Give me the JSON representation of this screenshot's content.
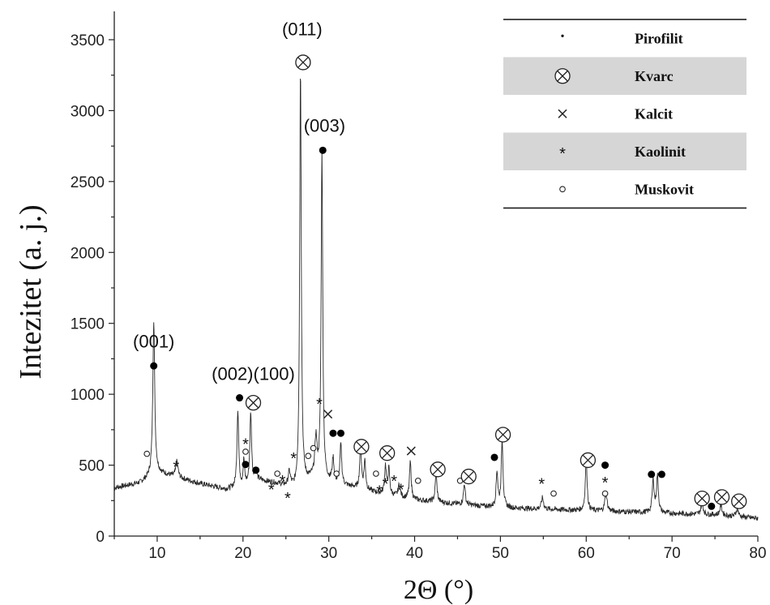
{
  "chart_data": {
    "type": "line",
    "xlabel": "2Θ (°)",
    "ylabel": "Intezitet (a. j.)",
    "xlim": [
      5,
      80
    ],
    "ylim": [
      0,
      3700
    ],
    "x_ticks": [
      10,
      20,
      30,
      40,
      50,
      60,
      70,
      80
    ],
    "y_ticks": [
      0,
      500,
      1000,
      1500,
      2000,
      2500,
      3000,
      3500
    ],
    "grid": false,
    "legend_position": "top-right",
    "legend": [
      {
        "symbol": "pirofilit",
        "label": "Pirofilit",
        "shaded": false
      },
      {
        "symbol": "kvarc",
        "label": "Kvarc",
        "shaded": true
      },
      {
        "symbol": "kalcit",
        "label": "Kalcit",
        "shaded": false
      },
      {
        "symbol": "kaolinit",
        "label": "Kaolinit",
        "shaded": true
      },
      {
        "symbol": "muskovit",
        "label": "Muskovit",
        "shaded": false
      }
    ],
    "baseline": [
      [
        5,
        340
      ],
      [
        8,
        375
      ],
      [
        10,
        450
      ],
      [
        12,
        420
      ],
      [
        15,
        370
      ],
      [
        18,
        330
      ],
      [
        20,
        345
      ],
      [
        22,
        390
      ],
      [
        24,
        370
      ],
      [
        26,
        330
      ],
      [
        28,
        400
      ],
      [
        30,
        380
      ],
      [
        33,
        340
      ],
      [
        36,
        300
      ],
      [
        40,
        255
      ],
      [
        45,
        225
      ],
      [
        50,
        200
      ],
      [
        55,
        190
      ],
      [
        60,
        180
      ],
      [
        65,
        170
      ],
      [
        70,
        160
      ],
      [
        75,
        150
      ],
      [
        80,
        125
      ]
    ],
    "peaks": [
      {
        "x": 9.6,
        "y": 1090,
        "w": 0.13
      },
      {
        "x": 12.3,
        "y": 110,
        "w": 0.15
      },
      {
        "x": 19.4,
        "y": 550,
        "w": 0.12
      },
      {
        "x": 20.1,
        "y": 180,
        "w": 0.1
      },
      {
        "x": 20.9,
        "y": 500,
        "w": 0.12
      },
      {
        "x": 21.5,
        "y": 80,
        "w": 0.15
      },
      {
        "x": 25.4,
        "y": 100,
        "w": 0.15
      },
      {
        "x": 26.7,
        "y": 2950,
        "w": 0.11
      },
      {
        "x": 28.5,
        "y": 280,
        "w": 0.15
      },
      {
        "x": 29.2,
        "y": 2330,
        "w": 0.11
      },
      {
        "x": 30.5,
        "y": 170,
        "w": 0.12
      },
      {
        "x": 31.4,
        "y": 280,
        "w": 0.12
      },
      {
        "x": 33.7,
        "y": 300,
        "w": 0.12
      },
      {
        "x": 34.2,
        "y": 200,
        "w": 0.12
      },
      {
        "x": 36.6,
        "y": 200,
        "w": 0.12
      },
      {
        "x": 37.0,
        "y": 180,
        "w": 0.12
      },
      {
        "x": 38.2,
        "y": 80,
        "w": 0.15
      },
      {
        "x": 39.5,
        "y": 260,
        "w": 0.12
      },
      {
        "x": 42.5,
        "y": 200,
        "w": 0.12
      },
      {
        "x": 45.8,
        "y": 150,
        "w": 0.12
      },
      {
        "x": 49.6,
        "y": 250,
        "w": 0.12
      },
      {
        "x": 50.2,
        "y": 480,
        "w": 0.12
      },
      {
        "x": 54.9,
        "y": 80,
        "w": 0.15
      },
      {
        "x": 60.0,
        "y": 380,
        "w": 0.12
      },
      {
        "x": 62.3,
        "y": 130,
        "w": 0.15
      },
      {
        "x": 67.8,
        "y": 230,
        "w": 0.13
      },
      {
        "x": 68.3,
        "y": 260,
        "w": 0.13
      },
      {
        "x": 73.5,
        "y": 80,
        "w": 0.15
      },
      {
        "x": 75.7,
        "y": 70,
        "w": 0.15
      },
      {
        "x": 77.6,
        "y": 60,
        "w": 0.15
      }
    ],
    "peak_labels": [
      {
        "x": 9.6,
        "y": 1330,
        "text": "(001)"
      },
      {
        "x": 21.2,
        "y": 1100,
        "text": "(002)(100)"
      },
      {
        "x": 26.9,
        "y": 3530,
        "text": "(011)"
      },
      {
        "x": 29.5,
        "y": 2850,
        "text": "(003)"
      }
    ],
    "markers": [
      {
        "s": "pirofilit",
        "x": 9.6,
        "y": 1200
      },
      {
        "s": "muskovit",
        "x": 8.8,
        "y": 580
      },
      {
        "s": "kaolinit",
        "x": 12.2,
        "y": 500
      },
      {
        "s": "pirofilit",
        "x": 19.6,
        "y": 975
      },
      {
        "s": "kvarc",
        "x": 21.2,
        "y": 940
      },
      {
        "s": "kaolinit",
        "x": 20.3,
        "y": 660
      },
      {
        "s": "muskovit",
        "x": 20.3,
        "y": 595
      },
      {
        "s": "pirofilit",
        "x": 20.3,
        "y": 505
      },
      {
        "s": "pirofilit",
        "x": 21.5,
        "y": 465
      },
      {
        "s": "kaolinit",
        "x": 23.3,
        "y": 340
      },
      {
        "s": "muskovit",
        "x": 24.0,
        "y": 440
      },
      {
        "s": "kaolinit",
        "x": 24.6,
        "y": 400
      },
      {
        "s": "kaolinit",
        "x": 25.2,
        "y": 280
      },
      {
        "s": "kaolinit",
        "x": 25.9,
        "y": 560
      },
      {
        "s": "muskovit",
        "x": 27.6,
        "y": 565
      },
      {
        "s": "muskovit",
        "x": 28.2,
        "y": 620
      },
      {
        "s": "kaolinit",
        "x": 28.9,
        "y": 945
      },
      {
        "s": "kvarc",
        "x": 27.0,
        "y": 3340
      },
      {
        "s": "pirofilit",
        "x": 29.3,
        "y": 2720
      },
      {
        "s": "kalcit",
        "x": 29.9,
        "y": 860
      },
      {
        "s": "pirofilit",
        "x": 30.5,
        "y": 725
      },
      {
        "s": "pirofilit",
        "x": 31.4,
        "y": 725
      },
      {
        "s": "muskovit",
        "x": 30.9,
        "y": 440
      },
      {
        "s": "kvarc",
        "x": 33.8,
        "y": 630
      },
      {
        "s": "muskovit",
        "x": 35.5,
        "y": 440
      },
      {
        "s": "kaolinit",
        "x": 35.9,
        "y": 330
      },
      {
        "s": "kvarc",
        "x": 36.8,
        "y": 585
      },
      {
        "s": "kaolinit",
        "x": 36.6,
        "y": 380
      },
      {
        "s": "kaolinit",
        "x": 37.6,
        "y": 400
      },
      {
        "s": "kaolinit",
        "x": 38.4,
        "y": 340
      },
      {
        "s": "kalcit",
        "x": 39.6,
        "y": 600
      },
      {
        "s": "muskovit",
        "x": 40.4,
        "y": 390
      },
      {
        "s": "kvarc",
        "x": 42.7,
        "y": 470
      },
      {
        "s": "muskovit",
        "x": 45.3,
        "y": 390
      },
      {
        "s": "kvarc",
        "x": 46.3,
        "y": 420
      },
      {
        "s": "pirofilit",
        "x": 49.3,
        "y": 555
      },
      {
        "s": "kvarc",
        "x": 50.3,
        "y": 715
      },
      {
        "s": "kaolinit",
        "x": 54.8,
        "y": 380
      },
      {
        "s": "muskovit",
        "x": 56.2,
        "y": 300
      },
      {
        "s": "kvarc",
        "x": 60.2,
        "y": 535
      },
      {
        "s": "pirofilit",
        "x": 62.2,
        "y": 500
      },
      {
        "s": "kaolinit",
        "x": 62.2,
        "y": 390
      },
      {
        "s": "muskovit",
        "x": 62.2,
        "y": 300
      },
      {
        "s": "pirofilit",
        "x": 67.6,
        "y": 435
      },
      {
        "s": "pirofilit",
        "x": 68.8,
        "y": 435
      },
      {
        "s": "kvarc",
        "x": 73.5,
        "y": 265
      },
      {
        "s": "pirofilit",
        "x": 74.6,
        "y": 210
      },
      {
        "s": "kvarc",
        "x": 75.8,
        "y": 275
      },
      {
        "s": "kvarc",
        "x": 77.8,
        "y": 245
      }
    ]
  }
}
